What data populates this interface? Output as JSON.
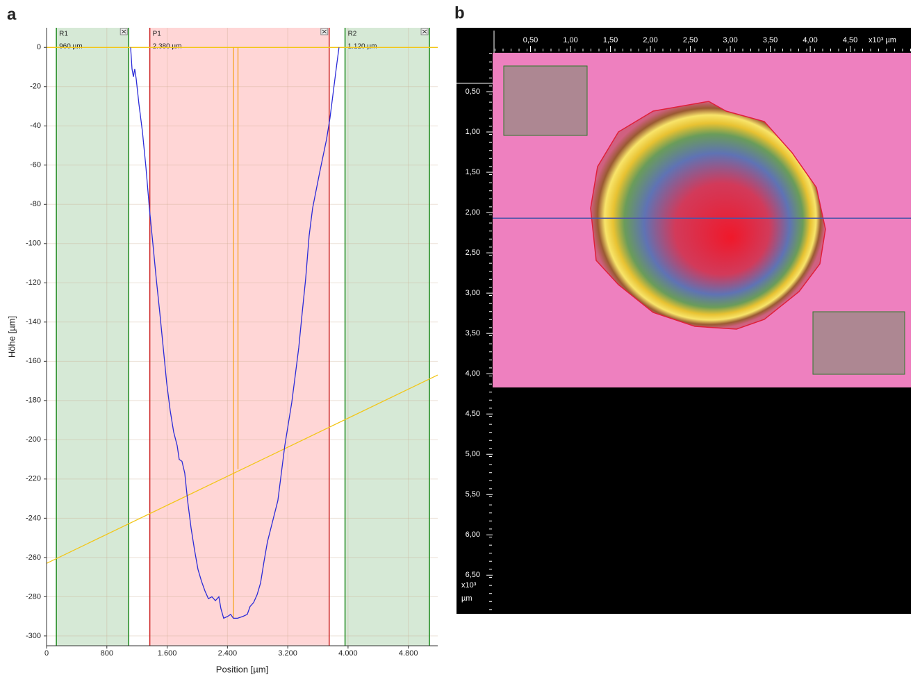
{
  "chart_data": [
    {
      "type": "line",
      "panel": "a",
      "x_label": "Position [µm]",
      "y_label": "Höhe [µm]",
      "xlim": [
        0,
        5190
      ],
      "ylim": [
        -305,
        10
      ],
      "xticks": [
        0,
        800,
        {
          "value": 1600,
          "label": "1.600"
        },
        {
          "value": 2400,
          "label": "2.400"
        },
        {
          "value": 3200,
          "label": "3.200"
        },
        {
          "value": 4000,
          "label": "4.000"
        },
        {
          "value": 4800,
          "label": "4.800"
        }
      ],
      "yticks": [
        0,
        -20,
        -40,
        -60,
        -80,
        -100,
        -120,
        -140,
        -160,
        -180,
        -200,
        -220,
        -240,
        -260,
        -280,
        -300
      ],
      "grid": true,
      "regions": [
        {
          "label": "R1",
          "width_label": "960 µm",
          "color": "#d6e9d6",
          "edge": "#1f8a1f",
          "x": [
            130,
            1090
          ]
        },
        {
          "label": "P1",
          "width_label": "2.380 µm",
          "color": "#ffd6d6",
          "edge": "#cc2222",
          "x": [
            1370,
            3750
          ]
        },
        {
          "label": "R2",
          "width_label": "1.120 µm",
          "color": "#d6e9d6",
          "edge": "#1f8a1f",
          "x": [
            3960,
            5080
          ]
        }
      ],
      "series": [
        {
          "color": "#f2c619",
          "x": [
            0,
            5190
          ],
          "values": [
            0,
            0
          ]
        },
        {
          "color": "#f2c619",
          "x": [
            0,
            5190
          ],
          "values": [
            -263,
            -167
          ]
        },
        {
          "color": "#f5a623",
          "x": [
            2480,
            2480
          ],
          "values": [
            0,
            -291
          ]
        },
        {
          "color": "#f5a623",
          "x": [
            2540,
            2540
          ],
          "values": [
            0,
            -215
          ]
        },
        {
          "color": "#2b2bd8",
          "x": [
            1115,
            1134,
            1152,
            1170,
            1189,
            1226,
            1272,
            1318,
            1364,
            1410,
            1456,
            1502,
            1548,
            1594,
            1640,
            1686,
            1733,
            1760,
            1797,
            1834,
            1871,
            1917,
            1963,
            2009,
            2055,
            2101,
            2147,
            2194,
            2240,
            2286,
            2313,
            2350,
            2405,
            2442,
            2479,
            2535,
            2608,
            2663,
            2700,
            2747,
            2793,
            2839,
            2885,
            2931,
            2977,
            3023,
            3069,
            3115,
            3161,
            3207,
            3253,
            3300,
            3346,
            3392,
            3438,
            3484,
            3530,
            3622,
            3714,
            3760,
            3806,
            3852,
            3880
          ],
          "values": [
            0,
            -11,
            -15,
            -11,
            -16,
            -29,
            -43,
            -61,
            -82,
            -100,
            -118,
            -135,
            -153,
            -171,
            -185,
            -196,
            -203,
            -210,
            -211,
            -217,
            -231,
            -245,
            -256,
            -266,
            -272,
            -277,
            -281,
            -280,
            -282,
            -280,
            -286,
            -291,
            -290,
            -289,
            -291,
            -291,
            -290,
            -289,
            -285,
            -283,
            -279,
            -273,
            -262,
            -252,
            -245,
            -238,
            -231,
            -217,
            -203,
            -192,
            -181,
            -167,
            -153,
            -135,
            -118,
            -96,
            -82,
            -64,
            -47,
            -36,
            -22,
            -8,
            0
          ]
        }
      ]
    },
    {
      "type": "image",
      "panel": "b",
      "x_label": "x10³ µm",
      "y_label_scale": "x10³",
      "y_label_unit": "µm",
      "xlim": [
        0,
        5.26
      ],
      "ylim": [
        0,
        6.98
      ],
      "profile_y": 2.07,
      "profile_color": "#4a55a8",
      "xticks": [
        {
          "value": 0.5,
          "label": "0,50"
        },
        {
          "value": 1.0,
          "label": "1,00"
        },
        {
          "value": 1.5,
          "label": "1,50"
        },
        {
          "value": 2.0,
          "label": "2,00"
        },
        {
          "value": 2.5,
          "label": "2,50"
        },
        {
          "value": 3.0,
          "label": "3,00"
        },
        {
          "value": 3.5,
          "label": "3,50"
        },
        {
          "value": 4.0,
          "label": "4,00"
        },
        {
          "value": 4.5,
          "label": "4,50"
        }
      ],
      "yticks": [
        {
          "value": 0.5,
          "label": "0,50"
        },
        {
          "value": 1.0,
          "label": "1,00"
        },
        {
          "value": 1.5,
          "label": "1,50"
        },
        {
          "value": 2.0,
          "label": "2,00"
        },
        {
          "value": 2.5,
          "label": "2,50"
        },
        {
          "value": 3.0,
          "label": "3,00"
        },
        {
          "value": 3.5,
          "label": "3,50"
        },
        {
          "value": 4.0,
          "label": "4,00"
        },
        {
          "value": 4.5,
          "label": "4,50"
        },
        {
          "value": 5.0,
          "label": "5,00"
        },
        {
          "value": 5.5,
          "label": "5,50"
        },
        {
          "value": 6.0,
          "label": "6,00"
        },
        {
          "value": 6.5,
          "label": "6,50"
        }
      ]
    }
  ]
}
